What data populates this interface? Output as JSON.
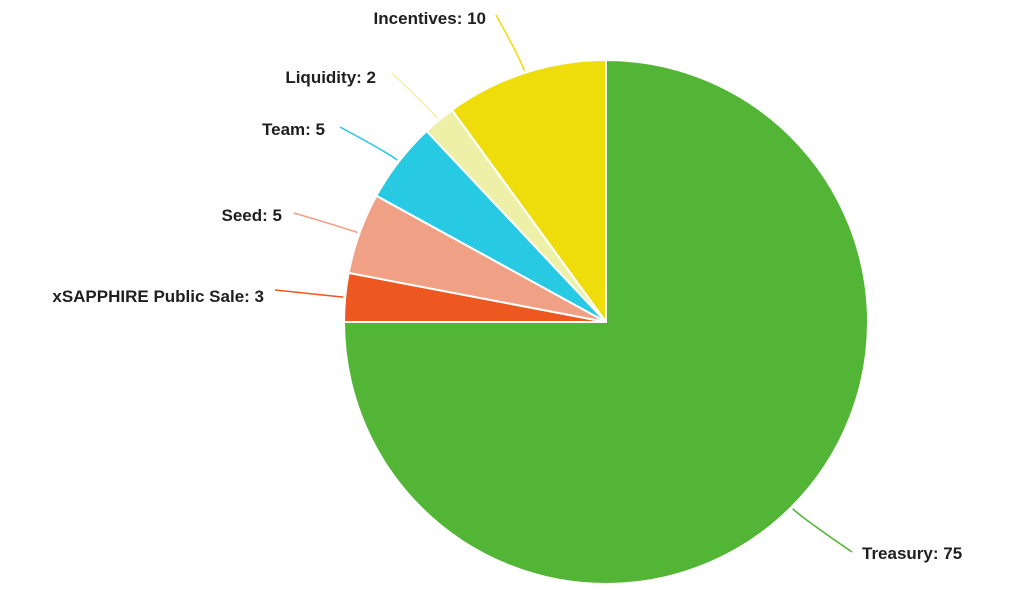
{
  "chart_data": {
    "type": "pie",
    "title": "",
    "slices": [
      {
        "label": "Treasury",
        "value": 75,
        "color": "#53b536"
      },
      {
        "label": "xSAPPHIRE Public Sale",
        "value": 3,
        "color": "#ec581f"
      },
      {
        "label": "Seed",
        "value": 5,
        "color": "#f0a085"
      },
      {
        "label": "Team",
        "value": 5,
        "color": "#27c9e3"
      },
      {
        "label": "Liquidity",
        "value": 2,
        "color": "#eef0a8"
      },
      {
        "label": "Incentives",
        "value": 10,
        "color": "#efdc0b"
      }
    ],
    "start_angle": "12 o'clock",
    "direction": "clockwise",
    "label_format": "name: value",
    "legend": "none"
  },
  "labels": {
    "treasury": "Treasury: 75",
    "xsapphire": "xSAPPHIRE Public Sale: 3",
    "seed": "Seed: 5",
    "team": "Team: 5",
    "liquidity": "Liquidity: 2",
    "incentives": "Incentives: 10"
  }
}
